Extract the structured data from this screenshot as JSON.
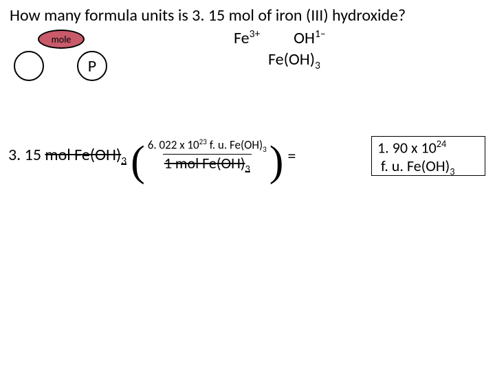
{
  "question": "How many formula units is 3. 15 mol of iron (III) hydroxide?",
  "ions": {
    "cation": "Fe",
    "cation_charge": "3+",
    "anion": "OH",
    "anion_charge": "1–"
  },
  "formula": {
    "base": "Fe(OH)",
    "sub": "3"
  },
  "diagram": {
    "mole_label": "mole",
    "p_label": "P"
  },
  "calc": {
    "given_value": "3. 15",
    "given_unit_struck": "mol Fe(OH)",
    "given_unit_sub": "3",
    "conv_top_left": "6. 022 x 10",
    "conv_top_exp": "23",
    "conv_top_right": " f. u. Fe(OH)",
    "conv_top_sub": "3",
    "conv_bot_left": "1 mol Fe(OH)",
    "conv_bot_sub": "3",
    "equals": "="
  },
  "answer": {
    "line1_left": "1. 90 x 10",
    "line1_exp": "24",
    "line2_left": "f. u. Fe(OH)",
    "line2_sub": "3"
  }
}
